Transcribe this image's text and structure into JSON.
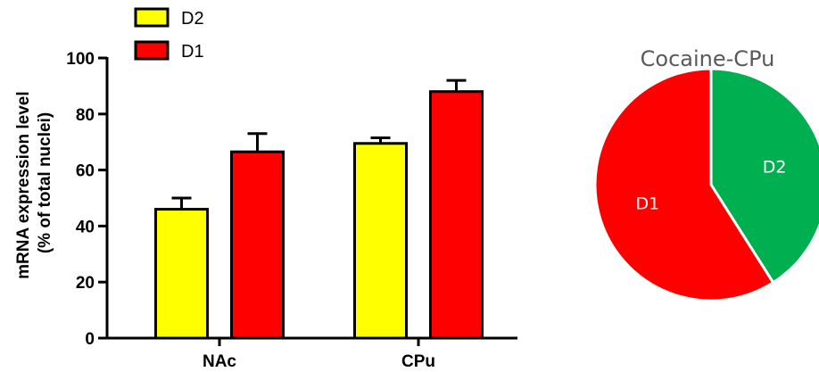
{
  "chart_data": [
    {
      "type": "bar",
      "categories": [
        "NAc",
        "CPu"
      ],
      "series": [
        {
          "name": "D2",
          "color": "#ffff00",
          "values": [
            46,
            69.5
          ],
          "errors": [
            4,
            2
          ]
        },
        {
          "name": "D1",
          "color": "#ff0000",
          "values": [
            66.5,
            88
          ],
          "errors": [
            6.5,
            4
          ]
        }
      ],
      "ylabel_line1": "mRNA expression level",
      "ylabel_line2": "(% of total nuclei)",
      "xlabel": "",
      "ylim": [
        0,
        100
      ],
      "yticks": [
        0,
        20,
        40,
        60,
        80,
        100
      ],
      "error_bars": "upper",
      "legend": {
        "placement": "top-left",
        "order": [
          "D2",
          "D1"
        ]
      },
      "grid": false
    },
    {
      "type": "pie",
      "title": "Cocaine-CPu",
      "slices": [
        {
          "label": "D2",
          "value": 41,
          "color": "#00b050"
        },
        {
          "label": "D1",
          "value": 59,
          "color": "#ff0000"
        }
      ],
      "start": "top",
      "direction": "clockwise"
    }
  ]
}
